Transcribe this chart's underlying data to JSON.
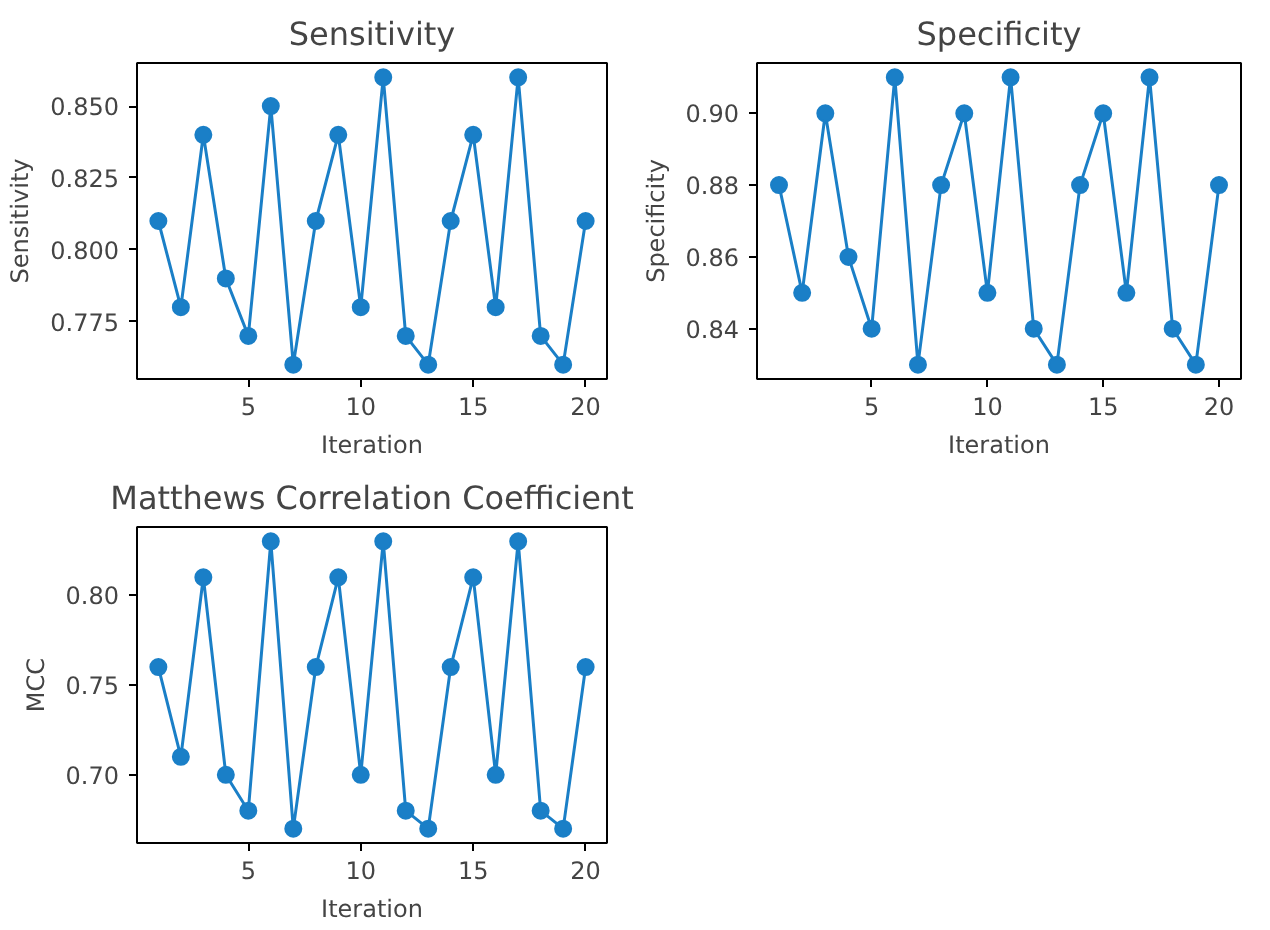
{
  "chart_data": [
    {
      "type": "line",
      "title": "Sensitivity",
      "xlabel": "Iteration",
      "ylabel": "Sensitivity",
      "x": [
        1,
        2,
        3,
        4,
        5,
        6,
        7,
        8,
        9,
        10,
        11,
        12,
        13,
        14,
        15,
        16,
        17,
        18,
        19,
        20
      ],
      "values": [
        0.81,
        0.78,
        0.84,
        0.79,
        0.77,
        0.85,
        0.76,
        0.81,
        0.84,
        0.78,
        0.86,
        0.77,
        0.76,
        0.81,
        0.84,
        0.78,
        0.86,
        0.77,
        0.76,
        0.81
      ],
      "color": "#1a7fc7",
      "marker": "circle",
      "line_style": "solid",
      "grid": false,
      "xlim": [
        0.05,
        20.95
      ],
      "ylim": [
        0.755,
        0.865
      ],
      "xticks": [
        5,
        10,
        15,
        20
      ],
      "yticks": [
        {
          "value": 0.775,
          "label": "0.775"
        },
        {
          "value": 0.8,
          "label": "0.800"
        },
        {
          "value": 0.825,
          "label": "0.825"
        },
        {
          "value": 0.85,
          "label": "0.850"
        }
      ]
    },
    {
      "type": "line",
      "title": "Specificity",
      "xlabel": "Iteration",
      "ylabel": "Specificity",
      "x": [
        1,
        2,
        3,
        4,
        5,
        6,
        7,
        8,
        9,
        10,
        11,
        12,
        13,
        14,
        15,
        16,
        17,
        18,
        19,
        20
      ],
      "values": [
        0.88,
        0.85,
        0.9,
        0.86,
        0.84,
        0.91,
        0.83,
        0.88,
        0.9,
        0.85,
        0.91,
        0.84,
        0.83,
        0.88,
        0.9,
        0.85,
        0.91,
        0.84,
        0.83,
        0.88
      ],
      "color": "#1a7fc7",
      "marker": "circle",
      "line_style": "solid",
      "grid": false,
      "xlim": [
        0.05,
        20.95
      ],
      "ylim": [
        0.826,
        0.914
      ],
      "xticks": [
        5,
        10,
        15,
        20
      ],
      "yticks": [
        {
          "value": 0.84,
          "label": "0.84"
        },
        {
          "value": 0.86,
          "label": "0.86"
        },
        {
          "value": 0.88,
          "label": "0.88"
        },
        {
          "value": 0.9,
          "label": "0.90"
        }
      ]
    },
    {
      "type": "line",
      "title": "Matthews Correlation Coefficient",
      "xlabel": "Iteration",
      "ylabel": "MCC",
      "x": [
        1,
        2,
        3,
        4,
        5,
        6,
        7,
        8,
        9,
        10,
        11,
        12,
        13,
        14,
        15,
        16,
        17,
        18,
        19,
        20
      ],
      "values": [
        0.76,
        0.71,
        0.81,
        0.7,
        0.68,
        0.83,
        0.67,
        0.76,
        0.81,
        0.7,
        0.83,
        0.68,
        0.67,
        0.76,
        0.81,
        0.7,
        0.83,
        0.68,
        0.67,
        0.76
      ],
      "color": "#1a7fc7",
      "marker": "circle",
      "line_style": "solid",
      "grid": false,
      "xlim": [
        0.05,
        20.95
      ],
      "ylim": [
        0.662,
        0.838
      ],
      "xticks": [
        5,
        10,
        15,
        20
      ],
      "yticks": [
        {
          "value": 0.7,
          "label": "0.70"
        },
        {
          "value": 0.75,
          "label": "0.75"
        },
        {
          "value": 0.8,
          "label": "0.80"
        }
      ]
    }
  ]
}
